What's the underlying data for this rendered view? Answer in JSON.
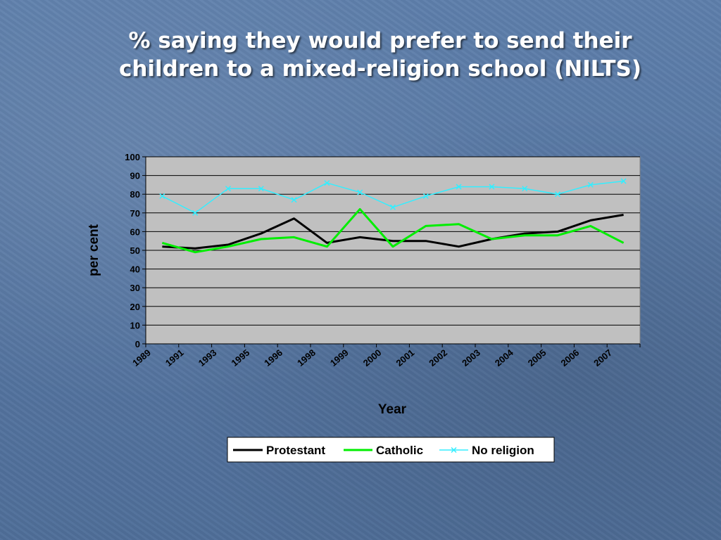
{
  "slide": {
    "title_line1": "% saying they would prefer to send their",
    "title_line2": "children to a mixed-religion school (NILTS)"
  },
  "chart_data": {
    "type": "line",
    "title": "% saying they would prefer to send their children to a mixed-religion school (NILTS)",
    "xlabel": "Year",
    "ylabel": "per cent",
    "ylim": [
      0,
      100
    ],
    "yticks": [
      "0",
      "10",
      "20",
      "30",
      "40",
      "50",
      "60",
      "70",
      "80",
      "90",
      "100"
    ],
    "grid": true,
    "legend_position": "bottom",
    "categories": [
      "1989",
      "1991",
      "1993",
      "1995",
      "1996",
      "1998",
      "1999",
      "2000",
      "2001",
      "2002",
      "2003",
      "2004",
      "2005",
      "2006",
      "2007"
    ],
    "series": [
      {
        "name": "Protestant",
        "color": "#000000",
        "marker": "none",
        "values": [
          52,
          51,
          53,
          59,
          67,
          54,
          57,
          55,
          55,
          52,
          56,
          59,
          60,
          66,
          69
        ]
      },
      {
        "name": "Catholic",
        "color": "#00ee00",
        "marker": "none",
        "values": [
          54,
          49,
          52,
          56,
          57,
          52,
          72,
          52,
          63,
          64,
          56,
          58,
          58,
          63,
          54
        ]
      },
      {
        "name": "No religion",
        "color": "#33eeff",
        "marker": "x",
        "values": [
          79,
          70,
          83,
          83,
          77,
          86,
          81,
          73,
          79,
          84,
          84,
          83,
          80,
          85,
          87
        ]
      }
    ]
  }
}
